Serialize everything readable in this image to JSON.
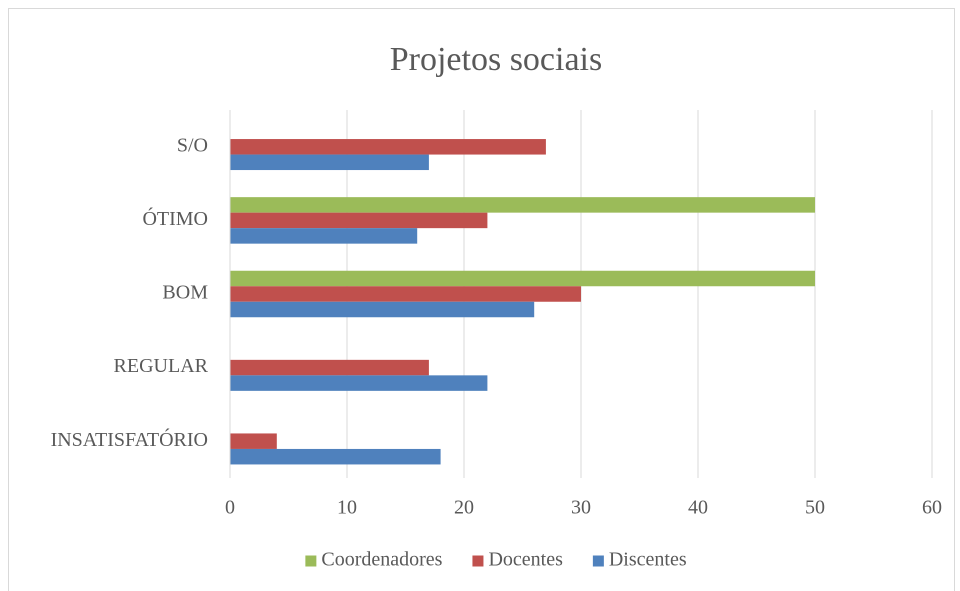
{
  "chart_data": {
    "type": "hbar",
    "title": "Projetos sociais",
    "categories": [
      "INSATISFATÓRIO",
      "REGULAR",
      "BOM",
      "ÓTIMO",
      "S/O"
    ],
    "series": [
      {
        "name": "Coordenadores",
        "color": "#9bbb59",
        "values": [
          0,
          0,
          50,
          50,
          0
        ]
      },
      {
        "name": "Docentes",
        "color": "#c0504d",
        "values": [
          4,
          17,
          30,
          22,
          27
        ]
      },
      {
        "name": "Discentes",
        "color": "#4f81bd",
        "values": [
          18,
          22,
          26,
          16,
          17
        ]
      }
    ],
    "xlim": [
      0,
      60
    ],
    "xticks": [
      0,
      10,
      20,
      30,
      40,
      50,
      60
    ],
    "grid": true,
    "legend": "bottom"
  }
}
